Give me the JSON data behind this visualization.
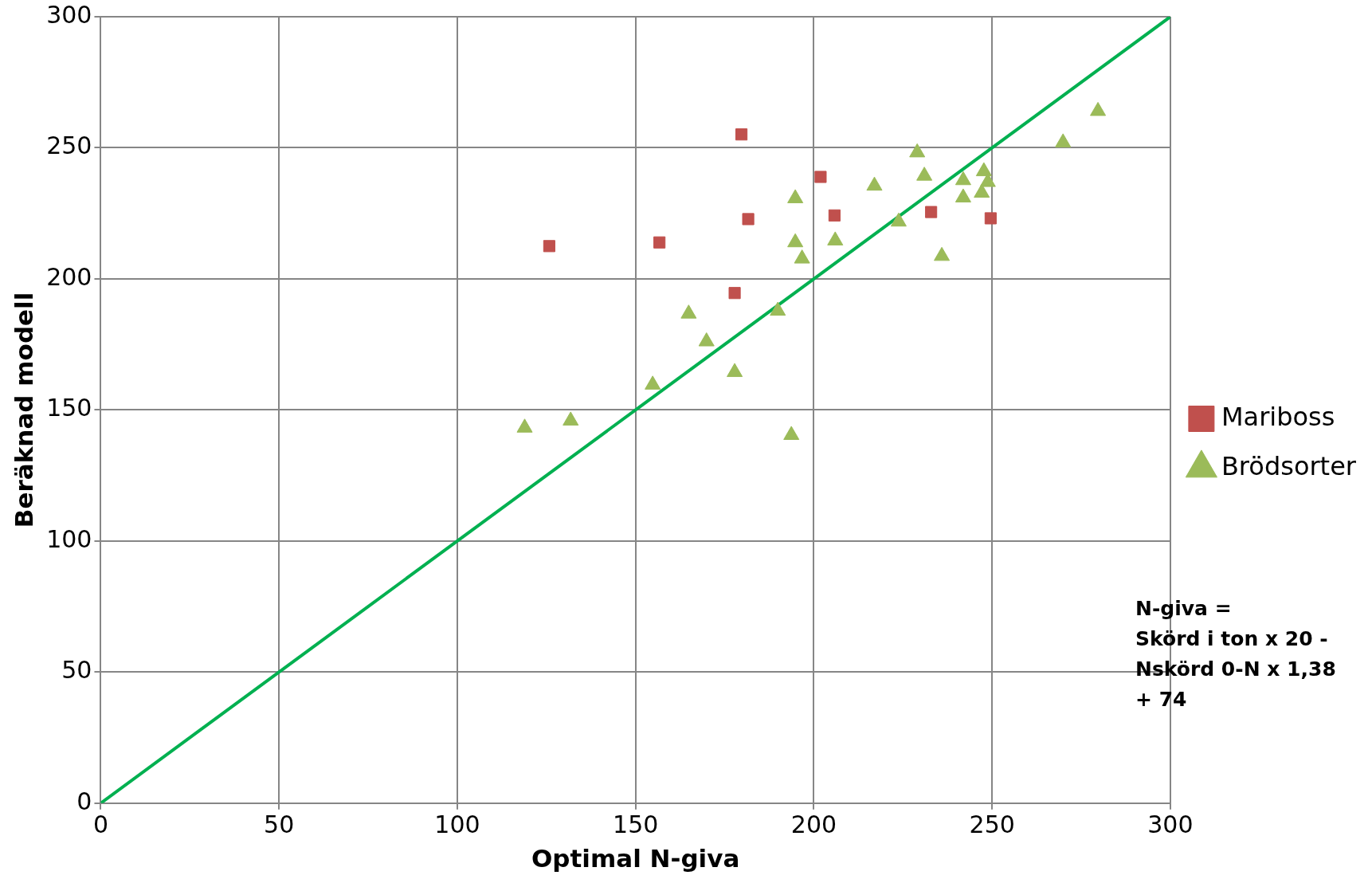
{
  "chart_data": {
    "type": "scatter",
    "xlabel": "Optimal N-giva",
    "ylabel": "Beräknad modell",
    "xlim": [
      0,
      300
    ],
    "xticks": [
      0,
      50,
      100,
      150,
      200,
      250,
      300
    ],
    "ylim": [
      0,
      300
    ],
    "yticks": [
      0,
      50,
      100,
      150,
      200,
      250,
      300
    ],
    "grid": true,
    "legend": "right",
    "annotations": [
      "N-giva =\nSkörd i ton x 20 -\nNskörd 0-N x 1,38\n+ 74"
    ],
    "series": [
      {
        "name": "Mariboss",
        "color": "#c0504d",
        "marker": "square",
        "x": [
          125.8,
          179.7,
          201.9,
          156.7,
          181.6,
          205.8,
          177.8,
          232.9,
          249.6
        ],
        "values": [
          212.5,
          255.1,
          238.9,
          213.9,
          222.8,
          224.2,
          194.6,
          225.5,
          223.1
        ]
      },
      {
        "name": "Brödsorter",
        "color": "#9bbb59",
        "marker": "triangle",
        "x": [
          118.9,
          131.8,
          154.8,
          164.9,
          169.9,
          177.8,
          189.9,
          193.7,
          194.8,
          194.8,
          196.7,
          206,
          217,
          223.8,
          229,
          231,
          235.9,
          241.9,
          241.9,
          247.7,
          248.8,
          247.1,
          269.9,
          279.7
        ],
        "values": [
          143.2,
          145.9,
          159.6,
          186.7,
          176.1,
          164.4,
          187.8,
          140.4,
          230.7,
          213.9,
          207.7,
          214.6,
          235.5,
          221.8,
          248.2,
          239.3,
          208.7,
          237.6,
          231,
          241,
          236.9,
          232.8,
          252,
          264
        ]
      },
      {
        "type": "line",
        "color": "#00b050",
        "marker": "none",
        "line_style": "solid",
        "x": [
          0,
          300
        ],
        "values": [
          0,
          300
        ]
      }
    ]
  }
}
